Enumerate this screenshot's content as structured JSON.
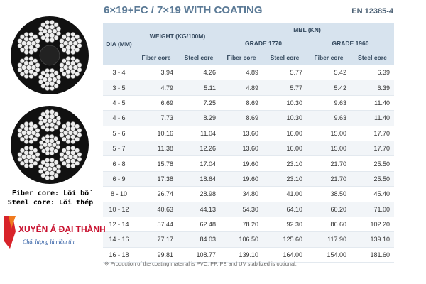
{
  "header": {
    "title": "6×19+FC / 7×19 WITH COATING",
    "standard": "EN 12385-4"
  },
  "table": {
    "dia": "DIA (MM)",
    "weight": "WEIGHT (KG/100M)",
    "mbl": "MBL (KN)",
    "grade_1770": "GRADE 1770",
    "grade_1960": "GRADE 1960",
    "sub": [
      "Fiber core",
      "Steel core",
      "Fiber core",
      "Steel core",
      "Fiber core",
      "Steel core"
    ],
    "rows": [
      [
        "3 - 4",
        "3.94",
        "4.26",
        "4.89",
        "5.77",
        "5.42",
        "6.39"
      ],
      [
        "3 - 5",
        "4.79",
        "5.11",
        "4.89",
        "5.77",
        "5.42",
        "6.39"
      ],
      [
        "4 - 5",
        "6.69",
        "7.25",
        "8.69",
        "10.30",
        "9.63",
        "11.40"
      ],
      [
        "4 - 6",
        "7.73",
        "8.29",
        "8.69",
        "10.30",
        "9.63",
        "11.40"
      ],
      [
        "5 - 6",
        "10.16",
        "11.04",
        "13.60",
        "16.00",
        "15.00",
        "17.70"
      ],
      [
        "5 - 7",
        "11.38",
        "12.26",
        "13.60",
        "16.00",
        "15.00",
        "17.70"
      ],
      [
        "6 - 8",
        "15.78",
        "17.04",
        "19.60",
        "23.10",
        "21.70",
        "25.50"
      ],
      [
        "6 - 9",
        "17.38",
        "18.64",
        "19.60",
        "23.10",
        "21.70",
        "25.50"
      ],
      [
        "8 - 10",
        "26.74",
        "28.98",
        "34.80",
        "41.00",
        "38.50",
        "45.40"
      ],
      [
        "10 - 12",
        "40.63",
        "44.13",
        "54.30",
        "64.10",
        "60.20",
        "71.00"
      ],
      [
        "12 - 14",
        "57.44",
        "62.48",
        "78.20",
        "92.30",
        "86.60",
        "102.20"
      ],
      [
        "14 - 16",
        "77.17",
        "84.03",
        "106.50",
        "125.60",
        "117.90",
        "139.10"
      ],
      [
        "16 - 18",
        "99.81",
        "108.77",
        "139.10",
        "164.00",
        "154.00",
        "181.60"
      ]
    ]
  },
  "legend": [
    "Fiber core: Lõi bố",
    "Steel core: Lõi thép"
  ],
  "logo": {
    "name": "XUYÊN Á ĐẠI THÀNH",
    "slogan": "Chất lượng là niềm tin"
  },
  "footnote": "※ Production of the coating material is PVC, PP, PE and UV stabilized is optional."
}
